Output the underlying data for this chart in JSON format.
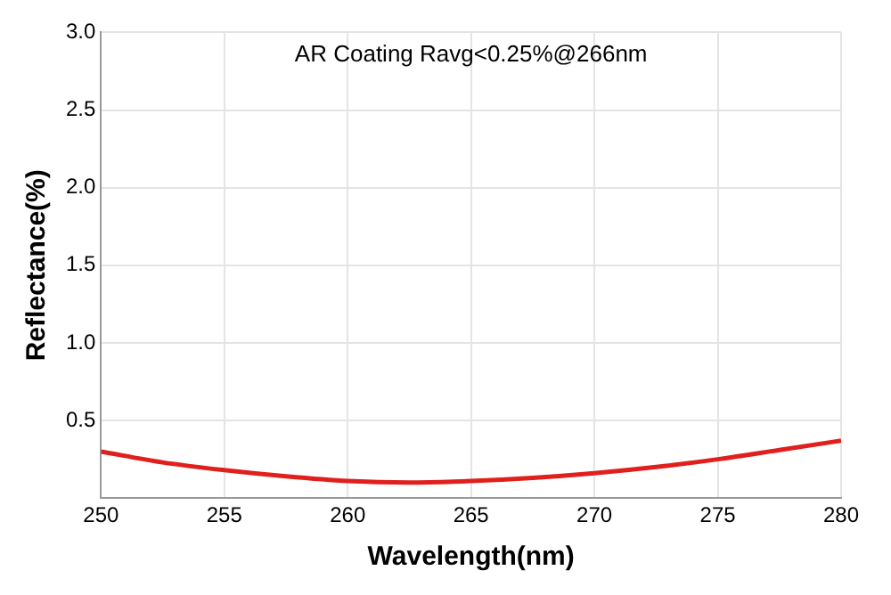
{
  "chart_data": {
    "type": "line",
    "xlabel": "Wavelength(nm)",
    "ylabel": "Reflectance(%)",
    "annotations": [
      "AR Coating Ravg<0.25%@266nm"
    ],
    "x": [
      250,
      252.5,
      255,
      257.5,
      260,
      262.5,
      265,
      267.5,
      270,
      272.5,
      275,
      277.5,
      280
    ],
    "series": [
      {
        "color": "#e0201c",
        "values": [
          0.3,
          0.23,
          0.18,
          0.14,
          0.11,
          0.1,
          0.11,
          0.13,
          0.16,
          0.2,
          0.25,
          0.31,
          0.37
        ]
      }
    ],
    "xlim": [
      250,
      280
    ],
    "xticks": [
      250,
      255,
      260,
      265,
      270,
      275,
      280
    ],
    "ylim": [
      0,
      3
    ],
    "yticks": [
      0.5,
      {
        "value": 1,
        "label": "1.0"
      },
      1.5,
      {
        "value": 2,
        "label": "2.0"
      },
      2.5,
      {
        "value": 3,
        "label": "3.0"
      }
    ],
    "grid": true,
    "legend": false,
    "marker": "none",
    "line_style": "solid"
  }
}
